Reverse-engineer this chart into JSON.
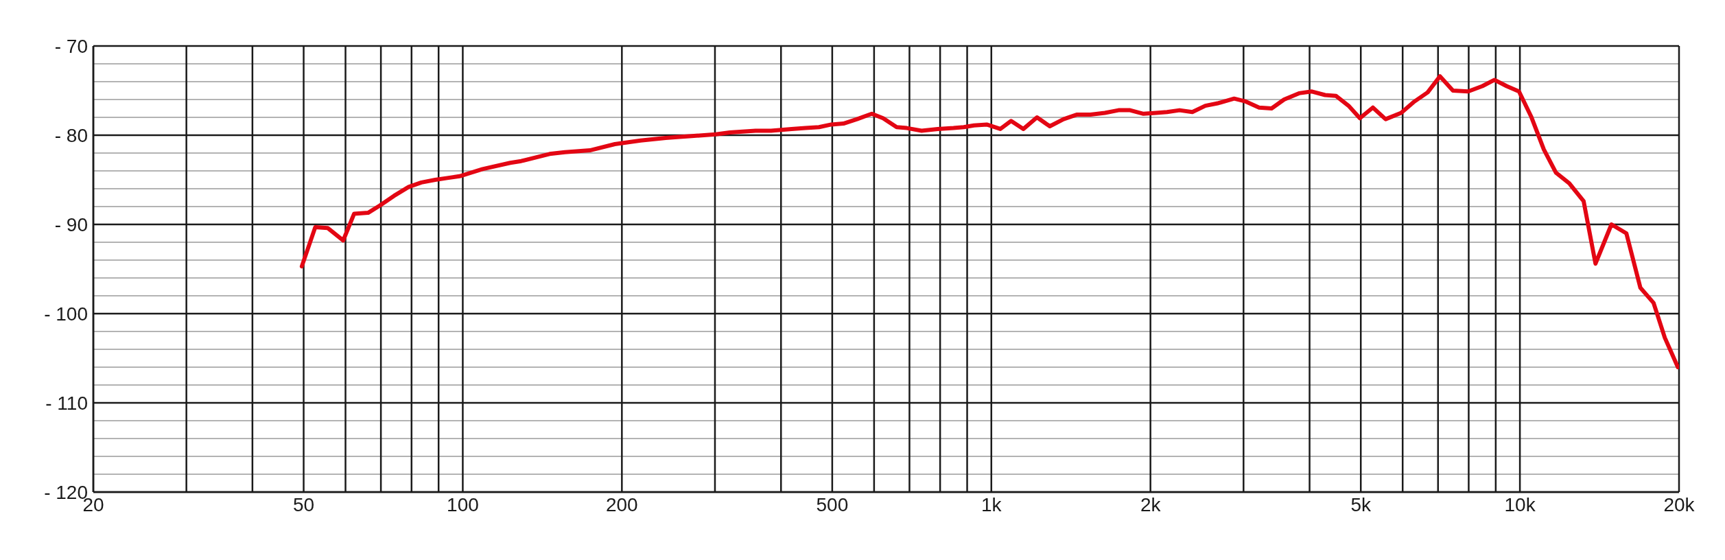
{
  "chart_data": {
    "type": "line",
    "log": "x",
    "grid": true,
    "marker": "none",
    "line_style": "solid",
    "xlim": [
      20,
      20000
    ],
    "xticks": [
      20,
      {
        "value": 30,
        "label": null
      },
      {
        "value": 40,
        "label": null
      },
      50,
      {
        "value": 60,
        "label": null
      },
      {
        "value": 70,
        "label": null
      },
      {
        "value": 80,
        "label": null
      },
      {
        "value": 90,
        "label": null
      },
      100,
      200,
      {
        "value": 300,
        "label": null
      },
      {
        "value": 400,
        "label": null
      },
      500,
      {
        "value": 600,
        "label": null
      },
      {
        "value": 700,
        "label": null
      },
      {
        "value": 800,
        "label": null
      },
      {
        "value": 900,
        "label": null
      },
      {
        "value": 1000,
        "label": "1k"
      },
      {
        "value": 2000,
        "label": "2k"
      },
      {
        "value": 3000,
        "label": null
      },
      {
        "value": 4000,
        "label": null
      },
      {
        "value": 5000,
        "label": "5k"
      },
      {
        "value": 6000,
        "label": null
      },
      {
        "value": 7000,
        "label": null
      },
      {
        "value": 8000,
        "label": null
      },
      {
        "value": 9000,
        "label": null
      },
      {
        "value": 10000,
        "label": "10k"
      },
      {
        "value": 20000,
        "label": "20k"
      }
    ],
    "ylim": [
      -120,
      -70
    ],
    "yticks": [
      {
        "value": -120,
        "label": "- 120"
      },
      {
        "value": -118,
        "label": null
      },
      {
        "value": -116,
        "label": null
      },
      {
        "value": -114,
        "label": null
      },
      {
        "value": -112,
        "label": null
      },
      {
        "value": -110,
        "label": "- 110"
      },
      {
        "value": -108,
        "label": null
      },
      {
        "value": -106,
        "label": null
      },
      {
        "value": -104,
        "label": null
      },
      {
        "value": -102,
        "label": null
      },
      {
        "value": -100,
        "label": "- 100"
      },
      {
        "value": -98,
        "label": null
      },
      {
        "value": -96,
        "label": null
      },
      {
        "value": -94,
        "label": null
      },
      {
        "value": -92,
        "label": null
      },
      {
        "value": -90,
        "label": "- 90"
      },
      {
        "value": -88,
        "label": null
      },
      {
        "value": -86,
        "label": null
      },
      {
        "value": -84,
        "label": null
      },
      {
        "value": -82,
        "label": null
      },
      {
        "value": -80,
        "label": "- 80"
      },
      {
        "value": -78,
        "label": null
      },
      {
        "value": -76,
        "label": null
      },
      {
        "value": -74,
        "label": null
      },
      {
        "value": -72,
        "label": null
      },
      {
        "value": -70,
        "label": "- 70"
      }
    ],
    "x": [
      49.6,
      52.6,
      55.5,
      59.4,
      62.3,
      66.2,
      69.6,
      74.1,
      79,
      83.5,
      88.7,
      93.5,
      98.6,
      109,
      123,
      129,
      146,
      156,
      174,
      194,
      217,
      242,
      257,
      271,
      301,
      320,
      358,
      383,
      419,
      445,
      472,
      498,
      525,
      557,
      594,
      624,
      662,
      692,
      738,
      792,
      848,
      887,
      927,
      980,
      1040,
      1090,
      1150,
      1220,
      1290,
      1370,
      1450,
      1540,
      1640,
      1740,
      1830,
      1940,
      2050,
      2150,
      2270,
      2400,
      2540,
      2690,
      2880,
      3020,
      3210,
      3390,
      3580,
      3820,
      4040,
      4280,
      4490,
      4740,
      4980,
      5270,
      5570,
      5960,
      6290,
      6690,
      7060,
      7470,
      7980,
      8490,
      8950,
      9440,
      9960,
      10500,
      11100,
      11700,
      12400,
      13200,
      13900,
      14900,
      15900,
      16900,
      17900,
      18800,
      19900
    ],
    "series": [
      {
        "color": "#e30613",
        "values": [
          -94.7,
          -90.3,
          -90.4,
          -91.8,
          -88.8,
          -88.7,
          -87.9,
          -86.8,
          -85.8,
          -85.3,
          -85,
          -84.8,
          -84.6,
          -83.8,
          -83.1,
          -82.9,
          -82.1,
          -81.9,
          -81.7,
          -81,
          -80.6,
          -80.3,
          -80.2,
          -80.1,
          -79.9,
          -79.7,
          -79.5,
          -79.5,
          -79.3,
          -79.2,
          -79.1,
          -78.8,
          -78.7,
          -78.2,
          -77.6,
          -78.1,
          -79.1,
          -79.2,
          -79.5,
          -79.3,
          -79.2,
          -79.1,
          -78.9,
          -78.8,
          -79.3,
          -78.4,
          -79.3,
          -78,
          -79,
          -78.2,
          -77.7,
          -77.7,
          -77.5,
          -77.2,
          -77.2,
          -77.6,
          -77.5,
          -77.4,
          -77.2,
          -77.4,
          -76.7,
          -76.4,
          -75.9,
          -76.2,
          -76.9,
          -77,
          -76,
          -75.3,
          -75.1,
          -75.5,
          -75.6,
          -76.7,
          -78.1,
          -76.9,
          -78.2,
          -77.5,
          -76.3,
          -75.2,
          -73.4,
          -75,
          -75.1,
          -74.5,
          -73.8,
          -74.5,
          -75.1,
          -77.9,
          -81.6,
          -84.2,
          -85.4,
          -87.4,
          -94.4,
          -90,
          -91,
          -97.1,
          -98.8,
          -102.7,
          -106
        ]
      }
    ]
  }
}
